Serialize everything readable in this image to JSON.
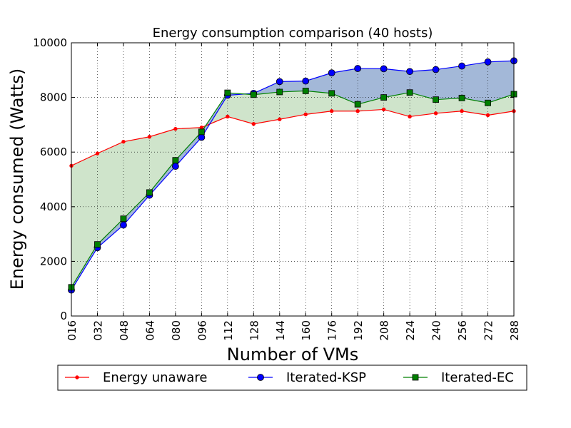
{
  "chart_data": {
    "type": "line",
    "title": "Energy consumption comparison (40 hosts)",
    "xlabel": "Number of VMs",
    "ylabel": "Energy consumed (Watts)",
    "categories": [
      "016",
      "032",
      "048",
      "064",
      "080",
      "096",
      "112",
      "128",
      "144",
      "160",
      "176",
      "192",
      "208",
      "224",
      "240",
      "256",
      "272",
      "288"
    ],
    "x": [
      16,
      32,
      48,
      64,
      80,
      96,
      112,
      128,
      144,
      160,
      176,
      192,
      208,
      224,
      240,
      256,
      272,
      288
    ],
    "xlim": [
      16,
      288
    ],
    "ylim": [
      0,
      10000
    ],
    "yticks": [
      0,
      2000,
      4000,
      6000,
      8000,
      10000
    ],
    "grid": true,
    "legend_position": "bottom",
    "series": [
      {
        "name": "Energy unaware",
        "color": "#ff0000",
        "marker": "dot",
        "values": [
          5500,
          5950,
          6380,
          6560,
          6850,
          6900,
          7300,
          7030,
          7200,
          7380,
          7500,
          7500,
          7560,
          7300,
          7420,
          7500,
          7350,
          7500
        ]
      },
      {
        "name": "Iterated-KSP",
        "color": "#0000ff",
        "marker": "circle",
        "values": [
          950,
          2500,
          3330,
          4420,
          5480,
          6540,
          8080,
          8150,
          8580,
          8600,
          8900,
          9060,
          9050,
          8950,
          9020,
          9150,
          9300,
          9340
        ]
      },
      {
        "name": "Iterated-EC",
        "color": "#008000",
        "marker": "square",
        "values": [
          1050,
          2620,
          3560,
          4520,
          5700,
          6740,
          8170,
          8100,
          8200,
          8240,
          8150,
          7750,
          8000,
          8180,
          7920,
          7980,
          7800,
          8120
        ]
      }
    ],
    "fills": [
      {
        "between": [
          "Iterated-EC",
          "Energy unaware"
        ],
        "color": "#cfe4cb"
      },
      {
        "between": [
          "Iterated-KSP",
          "Iterated-EC"
        ],
        "color": "#a3b8d8"
      }
    ]
  }
}
